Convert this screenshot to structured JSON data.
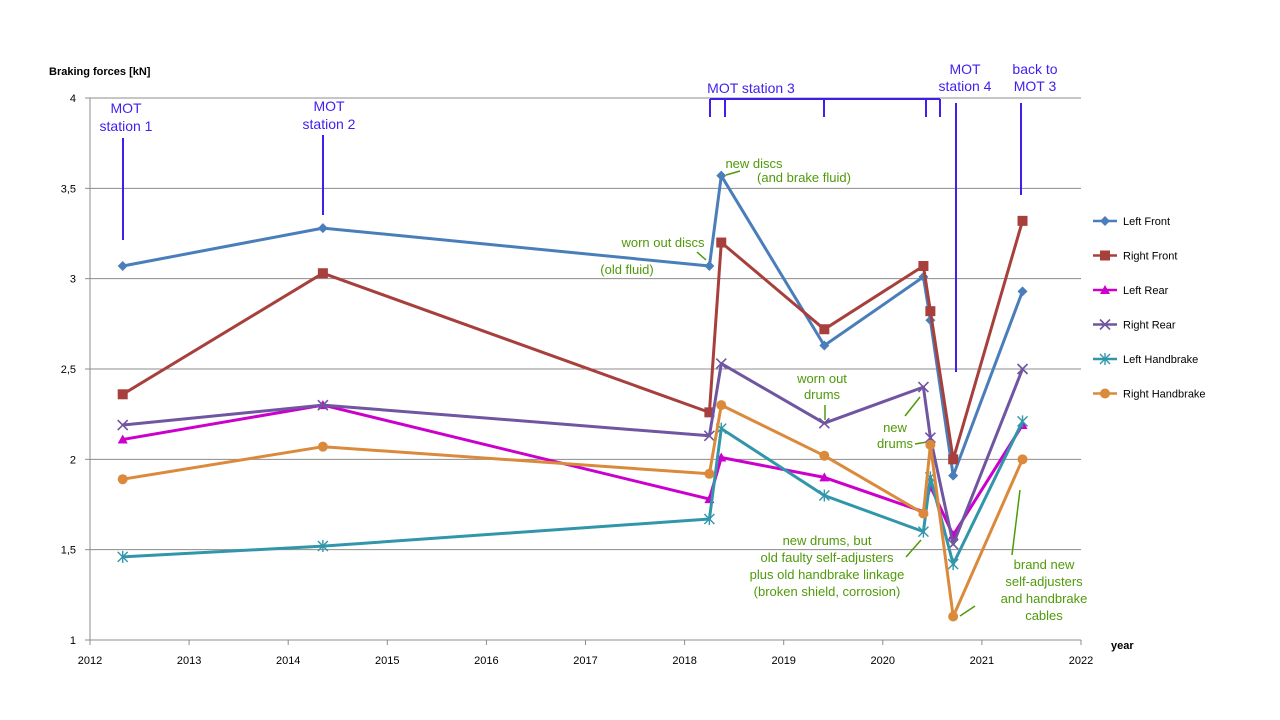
{
  "chart_data": {
    "type": "line",
    "ylabel": "Braking forces [kN]",
    "xlabel": "year",
    "xlim": [
      2012,
      2022
    ],
    "ylim": [
      1,
      4
    ],
    "x_ticks": [
      "2012",
      "2013",
      "2014",
      "2015",
      "2016",
      "2017",
      "2018",
      "2019",
      "2020",
      "2021",
      "2022"
    ],
    "y_ticks": [
      "1",
      "1,5",
      "2",
      "2,5",
      "3",
      "3,5",
      "4"
    ],
    "grid": "horizontal",
    "legend_position": "right",
    "series": [
      {
        "name": "Left Front",
        "color": "#4a7ebb",
        "marker": "diamond",
        "x": [
          2012.33,
          2014.35,
          2018.25,
          2018.37,
          2019.41,
          2020.41,
          2020.48,
          2020.71,
          2021.41
        ],
        "y": [
          3.07,
          3.28,
          3.07,
          3.57,
          2.63,
          3.01,
          2.77,
          1.91,
          2.93
        ]
      },
      {
        "name": "Right Front",
        "color": "#a7403d",
        "marker": "square",
        "x": [
          2012.33,
          2014.35,
          2018.25,
          2018.37,
          2019.41,
          2020.41,
          2020.48,
          2020.71,
          2021.41
        ],
        "y": [
          2.36,
          3.03,
          2.26,
          3.2,
          2.72,
          3.07,
          2.82,
          2.0,
          3.32
        ]
      },
      {
        "name": "Left Rear",
        "color": "#cc00cc",
        "marker": "triangle",
        "x": [
          2012.33,
          2014.35,
          2018.25,
          2018.37,
          2019.41,
          2020.41,
          2020.48,
          2020.71,
          2021.41
        ],
        "y": [
          2.11,
          2.3,
          1.78,
          2.01,
          1.9,
          1.71,
          1.85,
          1.58,
          2.19
        ]
      },
      {
        "name": "Right Rear",
        "color": "#7055a0",
        "marker": "x",
        "x": [
          2012.33,
          2014.35,
          2018.25,
          2018.37,
          2019.41,
          2020.41,
          2020.48,
          2020.71,
          2021.41
        ],
        "y": [
          2.19,
          2.3,
          2.13,
          2.53,
          2.2,
          2.4,
          2.12,
          1.53,
          2.5
        ]
      },
      {
        "name": "Left Handbrake",
        "color": "#3296ab",
        "marker": "star",
        "x": [
          2012.33,
          2014.35,
          2018.25,
          2018.37,
          2019.41,
          2020.41,
          2020.48,
          2020.71,
          2021.41
        ],
        "y": [
          1.46,
          1.52,
          1.67,
          2.17,
          1.8,
          1.6,
          1.9,
          1.42,
          2.21
        ]
      },
      {
        "name": "Right Handbrake",
        "color": "#db8a3c",
        "marker": "circle",
        "x": [
          2012.33,
          2014.35,
          2018.25,
          2018.37,
          2019.41,
          2020.41,
          2020.48,
          2020.71,
          2021.41
        ],
        "y": [
          1.89,
          2.07,
          1.92,
          2.3,
          2.02,
          1.7,
          2.08,
          1.13,
          2.0
        ]
      }
    ],
    "annotations": {
      "mot1": [
        "MOT",
        "station 1"
      ],
      "mot2": [
        "MOT",
        "station 2"
      ],
      "mot3": [
        "MOT station 3"
      ],
      "mot4": [
        "MOT",
        "station 4"
      ],
      "back": [
        "back to",
        "MOT 3"
      ],
      "new_discs": [
        "new discs",
        "(and brake fluid)"
      ],
      "worn_discs": [
        "worn out discs",
        "(old fluid)"
      ],
      "worn_drums": [
        "worn out",
        "drums"
      ],
      "new_drums": [
        "new",
        "drums"
      ],
      "new_drums_faulty": [
        "new drums, but",
        "old faulty self-adjusters",
        "plus old handbrake linkage",
        "(broken shield, corrosion)"
      ],
      "brand_new": [
        "brand new",
        "self-adjusters",
        "and handbrake",
        "cables"
      ]
    },
    "annotation_colors": {
      "station": "#3f1ff0",
      "note": "#4f9a0a"
    }
  }
}
